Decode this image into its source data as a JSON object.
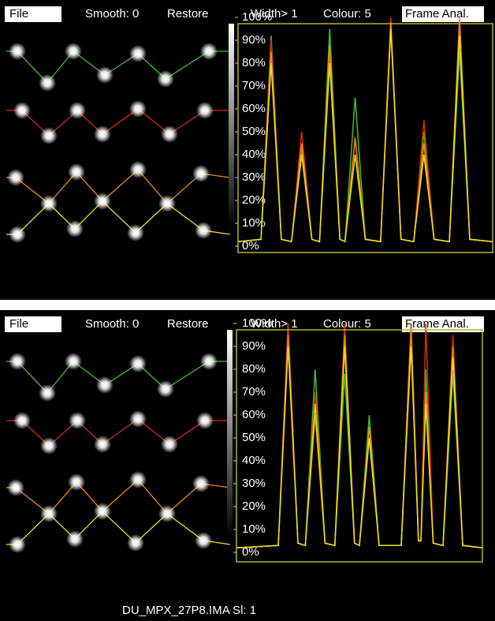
{
  "panels": [
    {
      "toolbar": {
        "file": "File",
        "smooth": "Smooth: 0",
        "restore": "Restore",
        "width": "Width> 1",
        "colour": "Colour: 5",
        "frame": "Frame Anal."
      },
      "chart": {
        "type": "line",
        "xlim": [
          0,
          100
        ],
        "ylim": [
          0,
          100
        ],
        "yticks": [
          {
            "value": 0,
            "label": "0%"
          },
          {
            "value": 10,
            "label": "10%"
          },
          {
            "value": 20,
            "label": "20%"
          },
          {
            "value": 30,
            "label": "30%"
          },
          {
            "value": 40,
            "label": "40%"
          },
          {
            "value": 50,
            "label": "50%"
          },
          {
            "value": 60,
            "label": "60%"
          },
          {
            "value": 70,
            "label": "70%"
          },
          {
            "value": 80,
            "label": "80%"
          },
          {
            "value": 90,
            "label": "90%"
          },
          {
            "value": 100,
            "label": "100%"
          }
        ],
        "x": [
          0,
          9,
          13,
          17,
          21,
          25,
          29,
          32,
          36,
          40,
          42,
          46,
          50,
          56,
          60,
          64,
          69,
          73,
          77,
          83,
          87,
          91,
          100
        ],
        "series": [
          {
            "color": "#3fbf2a",
            "values": [
              2,
              3,
              92,
              3,
              2,
              42,
              3,
              2,
              95,
              3,
              2,
              65,
              3,
              2,
              96,
              3,
              2,
              50,
              3,
              2,
              85,
              3,
              2
            ]
          },
          {
            "color": "#d42a10",
            "values": [
              2,
              3,
              90,
              3,
              2,
              50,
              3,
              2,
              82,
              3,
              2,
              48,
              3,
              2,
              100,
              3,
              2,
              55,
              3,
              2,
              98,
              3,
              2
            ]
          },
          {
            "color": "#f08a10",
            "values": [
              2,
              3,
              85,
              3,
              2,
              45,
              3,
              2,
              88,
              3,
              2,
              47,
              3,
              2,
              98,
              3,
              2,
              45,
              3,
              2,
              100,
              3,
              2
            ]
          },
          {
            "color": "#e8e020",
            "values": [
              2,
              3,
              80,
              3,
              2,
              40,
              3,
              2,
              80,
              3,
              2,
              40,
              3,
              2,
              95,
              3,
              2,
              40,
              3,
              2,
              92,
              3,
              2
            ]
          }
        ]
      }
    },
    {
      "toolbar": {
        "file": "File",
        "smooth": "Smooth: 0",
        "restore": "Restore",
        "width": "Width> 1",
        "colour": "Colour: 5",
        "frame": "Frame Anal."
      },
      "chart": {
        "type": "line",
        "xlim": [
          0,
          100
        ],
        "ylim": [
          0,
          100
        ],
        "yticks": [
          {
            "value": 0,
            "label": "0%"
          },
          {
            "value": 10,
            "label": "10%"
          },
          {
            "value": 20,
            "label": "20%"
          },
          {
            "value": 30,
            "label": "30%"
          },
          {
            "value": 40,
            "label": "40%"
          },
          {
            "value": 50,
            "label": "50%"
          },
          {
            "value": 60,
            "label": "60%"
          },
          {
            "value": 70,
            "label": "70%"
          },
          {
            "value": 80,
            "label": "80%"
          },
          {
            "value": 90,
            "label": "90%"
          },
          {
            "value": 100,
            "label": "100%"
          }
        ],
        "x": [
          0,
          17,
          21,
          25,
          28,
          32,
          36,
          40,
          44,
          48,
          50,
          54,
          58,
          67,
          71,
          74,
          75,
          77,
          80,
          84,
          88,
          92,
          100
        ],
        "series": [
          {
            "color": "#3fbf2a",
            "values": [
              2,
              3,
              100,
              4,
              3,
              80,
              4,
              3,
              78,
              4,
              3,
              60,
              3,
              3,
              100,
              5,
              5,
              80,
              4,
              3,
              78,
              3,
              2
            ]
          },
          {
            "color": "#d42a10",
            "values": [
              2,
              3,
              100,
              4,
              3,
              70,
              4,
              3,
              100,
              4,
              3,
              50,
              3,
              3,
              100,
              5,
              5,
              100,
              4,
              3,
              95,
              3,
              2
            ]
          },
          {
            "color": "#f08a10",
            "values": [
              2,
              3,
              95,
              4,
              3,
              60,
              4,
              3,
              95,
              4,
              3,
              55,
              3,
              3,
              98,
              5,
              5,
              70,
              4,
              3,
              90,
              3,
              2
            ]
          },
          {
            "color": "#e8e020",
            "values": [
              2,
              3,
              90,
              4,
              3,
              65,
              4,
              3,
              90,
              4,
              3,
              50,
              3,
              3,
              90,
              5,
              5,
              65,
              4,
              3,
              85,
              3,
              2
            ]
          }
        ]
      }
    }
  ],
  "status": "DU_MPX_27P8.IMA Sl:  1"
}
